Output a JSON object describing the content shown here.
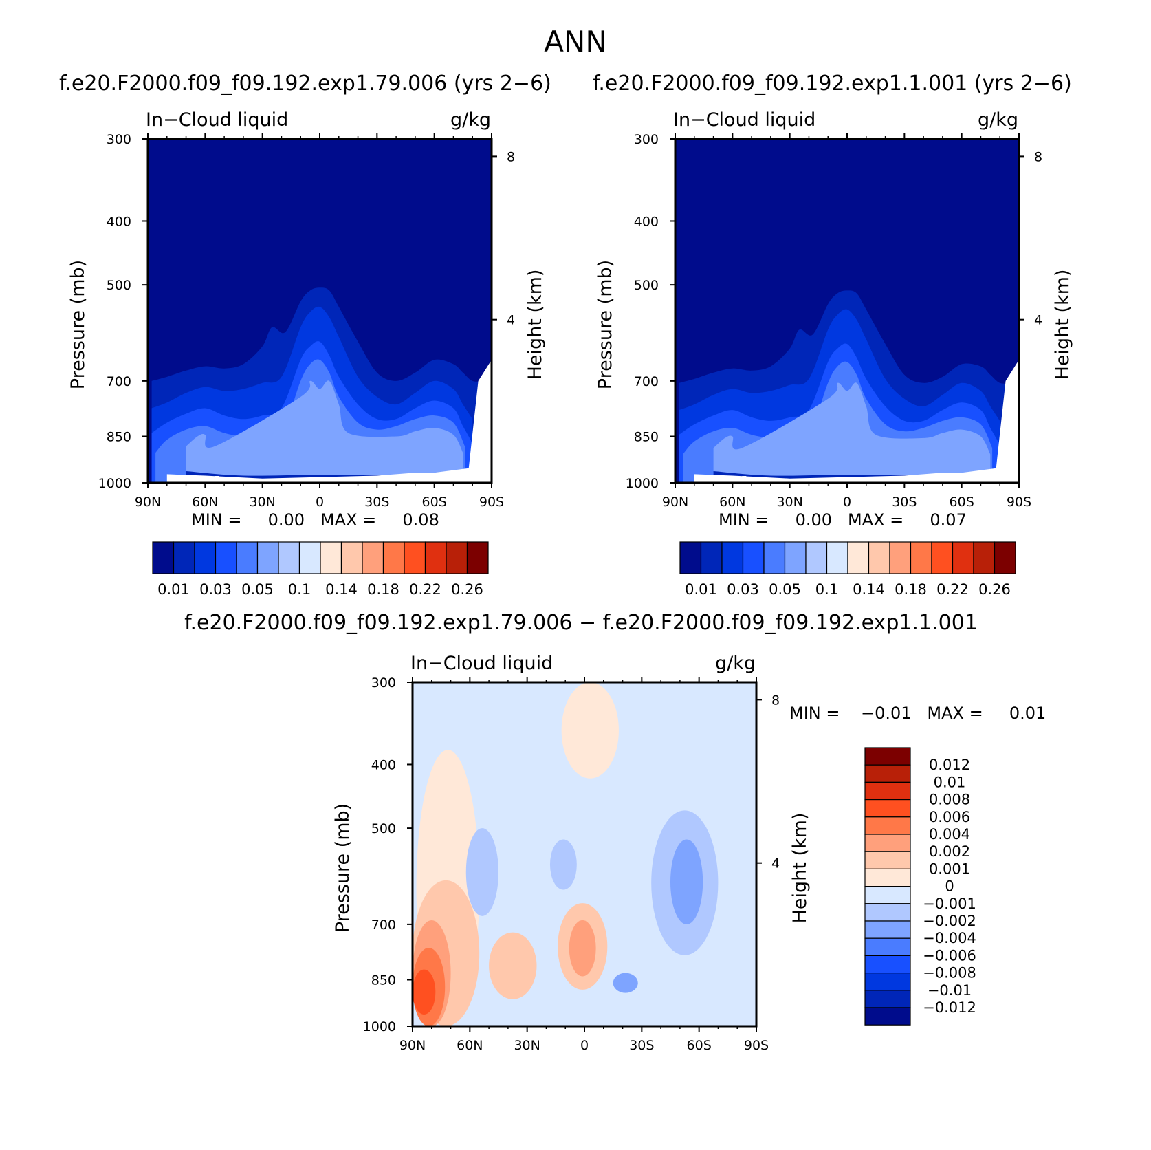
{
  "figure": {
    "title": "ANN",
    "diff_title": "f.e20.F2000.f09_f09.192.exp1.79.006 − f.e20.F2000.f09_f09.192.exp1.1.001"
  },
  "panels": [
    {
      "id": "case",
      "title": "f.e20.F2000.f09_f09.192.exp1.79.006 (yrs 2−6)",
      "variable_label": "In−Cloud liquid",
      "units_label": "g/kg",
      "min_max_text": "MIN =     0.00   MAX =     0.08"
    },
    {
      "id": "control",
      "title": "f.e20.F2000.f09_f09.192.exp1.1.001 (yrs 2−6)",
      "variable_label": "In−Cloud liquid",
      "units_label": "g/kg",
      "min_max_text": "MIN =     0.00   MAX =     0.07"
    },
    {
      "id": "difference",
      "title": "",
      "variable_label": "In−Cloud liquid",
      "units_label": "g/kg",
      "min_max_text": "MIN =    −0.01   MAX =     0.01"
    }
  ],
  "chart_data": [
    {
      "type": "heatmap",
      "panel": "case",
      "xlabel": "",
      "ylabel": "Pressure (mb)",
      "y2label": "Height (km)",
      "x_ticks": [
        "90N",
        "60N",
        "30N",
        "0",
        "30S",
        "60S",
        "90S"
      ],
      "x_values": [
        90,
        60,
        30,
        0,
        -30,
        -60,
        -90
      ],
      "xlim": [
        90,
        -90
      ],
      "y_ticks": [
        300,
        400,
        500,
        700,
        850,
        1000
      ],
      "ylim": [
        1000,
        300
      ],
      "y_scale": "log",
      "y2_ticks": [
        4,
        8
      ],
      "min": 0.0,
      "max": 0.08,
      "colorbar": {
        "orientation": "horizontal",
        "labels": [
          "0.01",
          "0.03",
          "0.05",
          "0.1",
          "0.14",
          "0.18",
          "0.22",
          "0.26"
        ],
        "colors": [
          "#000c8c",
          "#0026b8",
          "#0038e0",
          "#1850ff",
          "#4a7cff",
          "#7ea4ff",
          "#b0c8ff",
          "#d8e8ff",
          "#ffe8d8",
          "#ffc8ac",
          "#ffa07c",
          "#ff7848",
          "#ff5020",
          "#e03010",
          "#b82008",
          "#7c0000"
        ]
      },
      "levels_g_per_kg": [
        0.002,
        0.005,
        0.01,
        0.02,
        0.03,
        0.04
      ],
      "cloud_top_pressure_by_level": [
        {
          "level": 0.002,
          "lat": [
            88,
            80,
            70,
            60,
            50,
            40,
            30,
            25,
            18,
            10,
            5,
            0,
            -5,
            -10,
            -20,
            -30,
            -40,
            -50,
            -60,
            -70,
            -75,
            -80,
            -86
          ],
          "pressure": [
            700,
            690,
            675,
            665,
            670,
            660,
            620,
            580,
            590,
            530,
            510,
            505,
            510,
            540,
            610,
            680,
            700,
            680,
            650,
            660,
            680,
            700,
            700
          ]
        },
        {
          "level": 0.005,
          "lat": [
            88,
            80,
            70,
            60,
            50,
            40,
            30,
            20,
            10,
            5,
            0,
            -5,
            -10,
            -20,
            -30,
            -40,
            -50,
            -60,
            -70,
            -75,
            -80
          ],
          "pressure": [
            770,
            755,
            730,
            715,
            725,
            720,
            705,
            690,
            580,
            550,
            540,
            560,
            600,
            690,
            740,
            760,
            730,
            700,
            720,
            760,
            800
          ]
        },
        {
          "level": 0.01,
          "lat": [
            88,
            80,
            70,
            60,
            50,
            40,
            30,
            20,
            10,
            5,
            0,
            -5,
            -10,
            -20,
            -30,
            -40,
            -50,
            -60,
            -70,
            -75,
            -80
          ],
          "pressure": [
            840,
            810,
            785,
            770,
            790,
            800,
            790,
            770,
            650,
            620,
            610,
            640,
            690,
            760,
            800,
            800,
            770,
            750,
            770,
            820,
            870
          ]
        },
        {
          "level": 0.02,
          "lat": [
            86,
            80,
            70,
            60,
            50,
            40,
            30,
            20,
            10,
            5,
            0,
            -5,
            -10,
            -20,
            -30,
            -40,
            -50,
            -60,
            -70,
            -76
          ],
          "pressure": [
            900,
            860,
            830,
            820,
            840,
            850,
            850,
            840,
            700,
            660,
            650,
            680,
            740,
            810,
            830,
            820,
            800,
            790,
            810,
            880
          ]
        },
        {
          "level": 0.03,
          "lat": [
            70,
            64,
            60,
            55,
            10,
            5,
            0,
            -5,
            -10,
            -15,
            -40,
            -50,
            -60,
            -70,
            -75
          ],
          "pressure": [
            880,
            850,
            845,
            880,
            740,
            700,
            720,
            700,
            760,
            840,
            850,
            835,
            825,
            845,
            900
          ]
        }
      ],
      "surface_boundary_lat_pressure": [
        [
          80,
          970
        ],
        [
          60,
          975
        ],
        [
          30,
          985
        ],
        [
          0,
          980
        ],
        [
          -30,
          975
        ],
        [
          -50,
          965
        ],
        [
          -60,
          965
        ],
        [
          -78,
          950
        ],
        [
          -83,
          700
        ],
        [
          -90,
          650
        ]
      ]
    },
    {
      "type": "heatmap",
      "panel": "control",
      "xlabel": "",
      "ylabel": "Pressure (mb)",
      "y2label": "Height (km)",
      "x_ticks": [
        "90N",
        "60N",
        "30N",
        "0",
        "30S",
        "60S",
        "90S"
      ],
      "x_values": [
        90,
        60,
        30,
        0,
        -30,
        -60,
        -90
      ],
      "xlim": [
        90,
        -90
      ],
      "y_ticks": [
        300,
        400,
        500,
        700,
        850,
        1000
      ],
      "ylim": [
        1000,
        300
      ],
      "y_scale": "log",
      "y2_ticks": [
        4,
        8
      ],
      "min": 0.0,
      "max": 0.07,
      "colorbar": {
        "orientation": "horizontal",
        "labels": [
          "0.01",
          "0.03",
          "0.05",
          "0.1",
          "0.14",
          "0.18",
          "0.22",
          "0.26"
        ],
        "colors": [
          "#000c8c",
          "#0026b8",
          "#0038e0",
          "#1850ff",
          "#4a7cff",
          "#7ea4ff",
          "#b0c8ff",
          "#d8e8ff",
          "#ffe8d8",
          "#ffc8ac",
          "#ffa07c",
          "#ff7848",
          "#ff5020",
          "#e03010",
          "#b82008",
          "#7c0000"
        ]
      },
      "levels_g_per_kg": [
        0.002,
        0.005,
        0.01,
        0.02,
        0.03,
        0.04
      ],
      "cloud_top_pressure_by_level": [
        {
          "level": 0.002,
          "lat": [
            88,
            80,
            70,
            60,
            50,
            40,
            30,
            25,
            18,
            10,
            5,
            0,
            -5,
            -10,
            -20,
            -30,
            -40,
            -50,
            -60,
            -70,
            -75,
            -80,
            -86
          ],
          "pressure": [
            705,
            695,
            680,
            670,
            675,
            665,
            625,
            585,
            595,
            535,
            515,
            510,
            515,
            545,
            615,
            685,
            705,
            690,
            660,
            665,
            685,
            705,
            705
          ]
        },
        {
          "level": 0.005,
          "lat": [
            88,
            80,
            70,
            60,
            50,
            40,
            30,
            20,
            10,
            5,
            0,
            -5,
            -10,
            -20,
            -30,
            -40,
            -50,
            -60,
            -70,
            -75,
            -80
          ],
          "pressure": [
            775,
            760,
            735,
            720,
            730,
            725,
            710,
            695,
            585,
            555,
            545,
            565,
            605,
            695,
            745,
            765,
            735,
            705,
            725,
            765,
            805
          ]
        },
        {
          "level": 0.01,
          "lat": [
            88,
            80,
            70,
            60,
            50,
            40,
            30,
            20,
            10,
            5,
            0,
            -5,
            -10,
            -20,
            -30,
            -40,
            -50,
            -60,
            -70,
            -75,
            -80
          ],
          "pressure": [
            845,
            815,
            790,
            775,
            795,
            805,
            795,
            775,
            655,
            625,
            615,
            645,
            695,
            765,
            805,
            805,
            775,
            755,
            775,
            825,
            875
          ]
        },
        {
          "level": 0.02,
          "lat": [
            86,
            80,
            70,
            60,
            50,
            40,
            30,
            20,
            10,
            5,
            0,
            -5,
            -10,
            -20,
            -30,
            -40,
            -50,
            -60,
            -70,
            -76
          ],
          "pressure": [
            905,
            865,
            835,
            825,
            845,
            855,
            855,
            845,
            705,
            665,
            655,
            685,
            745,
            815,
            835,
            825,
            805,
            795,
            815,
            885
          ]
        },
        {
          "level": 0.03,
          "lat": [
            70,
            64,
            60,
            55,
            10,
            5,
            0,
            -5,
            -10,
            -15,
            -40,
            -50,
            -60,
            -70,
            -75
          ],
          "pressure": [
            885,
            855,
            850,
            885,
            745,
            705,
            725,
            705,
            765,
            845,
            855,
            840,
            830,
            850,
            905
          ]
        }
      ],
      "surface_boundary_lat_pressure": [
        [
          80,
          970
        ],
        [
          60,
          975
        ],
        [
          30,
          985
        ],
        [
          0,
          980
        ],
        [
          -30,
          975
        ],
        [
          -50,
          965
        ],
        [
          -60,
          965
        ],
        [
          -78,
          950
        ],
        [
          -83,
          700
        ],
        [
          -90,
          650
        ]
      ]
    },
    {
      "type": "heatmap",
      "panel": "difference",
      "xlabel": "",
      "ylabel": "Pressure (mb)",
      "y2label": "Height (km)",
      "x_ticks": [
        "90N",
        "60N",
        "30N",
        "0",
        "30S",
        "60S",
        "90S"
      ],
      "x_values": [
        90,
        60,
        30,
        0,
        -30,
        -60,
        -90
      ],
      "xlim": [
        90,
        -90
      ],
      "y_ticks": [
        300,
        400,
        500,
        700,
        850,
        1000
      ],
      "ylim": [
        1000,
        300
      ],
      "y_scale": "log",
      "y2_ticks": [
        4,
        8
      ],
      "min": -0.01,
      "max": 0.01,
      "colorbar": {
        "orientation": "vertical",
        "labels": [
          "0.012",
          "0.01",
          "0.008",
          "0.006",
          "0.004",
          "0.002",
          "0.001",
          "0",
          "−0.001",
          "−0.002",
          "−0.004",
          "−0.006",
          "−0.008",
          "−0.01",
          "−0.012"
        ],
        "colors": [
          "#7c0000",
          "#b82008",
          "#e03010",
          "#ff5020",
          "#ff7848",
          "#ffa07c",
          "#ffc8ac",
          "#ffe8d8",
          "#d8e8ff",
          "#b0c8ff",
          "#7ea4ff",
          "#4a7cff",
          "#1850ff",
          "#0038e0",
          "#0026b8",
          "#000c8c"
        ]
      },
      "background_value": "0 to −0.001",
      "features": [
        {
          "value": 0.0005,
          "description_lat": [
            88,
            55
          ],
          "description_pressure": [
            380,
            1000
          ]
        },
        {
          "value": 0.0005,
          "description_lat": [
            12,
            -18
          ],
          "description_pressure": [
            300,
            420
          ]
        },
        {
          "value": 0.0015,
          "description_lat": [
            90,
            55
          ],
          "description_pressure": [
            600,
            1000
          ]
        },
        {
          "value": 0.003,
          "description_lat": [
            90,
            70
          ],
          "description_pressure": [
            690,
            1000
          ]
        },
        {
          "value": 0.005,
          "description_lat": [
            90,
            73
          ],
          "description_pressure": [
            760,
            1000
          ]
        },
        {
          "value": 0.007,
          "description_lat": [
            90,
            78
          ],
          "description_pressure": [
            820,
            960
          ]
        },
        {
          "value": 0.0015,
          "description_lat": [
            50,
            25
          ],
          "description_pressure": [
            720,
            910
          ]
        },
        {
          "value": 0.0015,
          "description_lat": [
            14,
            -12
          ],
          "description_pressure": [
            650,
            880
          ]
        },
        {
          "value": 0.003,
          "description_lat": [
            8,
            -6
          ],
          "description_pressure": [
            690,
            840
          ]
        },
        {
          "value": -0.0015,
          "description_lat": [
            62,
            45
          ],
          "description_pressure": [
            500,
            680
          ]
        },
        {
          "value": -0.0015,
          "description_lat": [
            18,
            4
          ],
          "description_pressure": [
            520,
            620
          ]
        },
        {
          "value": -0.0015,
          "description_lat": [
            -35,
            -70
          ],
          "description_pressure": [
            470,
            780
          ]
        },
        {
          "value": -0.003,
          "description_lat": [
            -45,
            -62
          ],
          "description_pressure": [
            520,
            700
          ]
        },
        {
          "value": -0.003,
          "description_lat": [
            -15,
            -28
          ],
          "description_pressure": [
            830,
            890
          ]
        }
      ]
    }
  ]
}
